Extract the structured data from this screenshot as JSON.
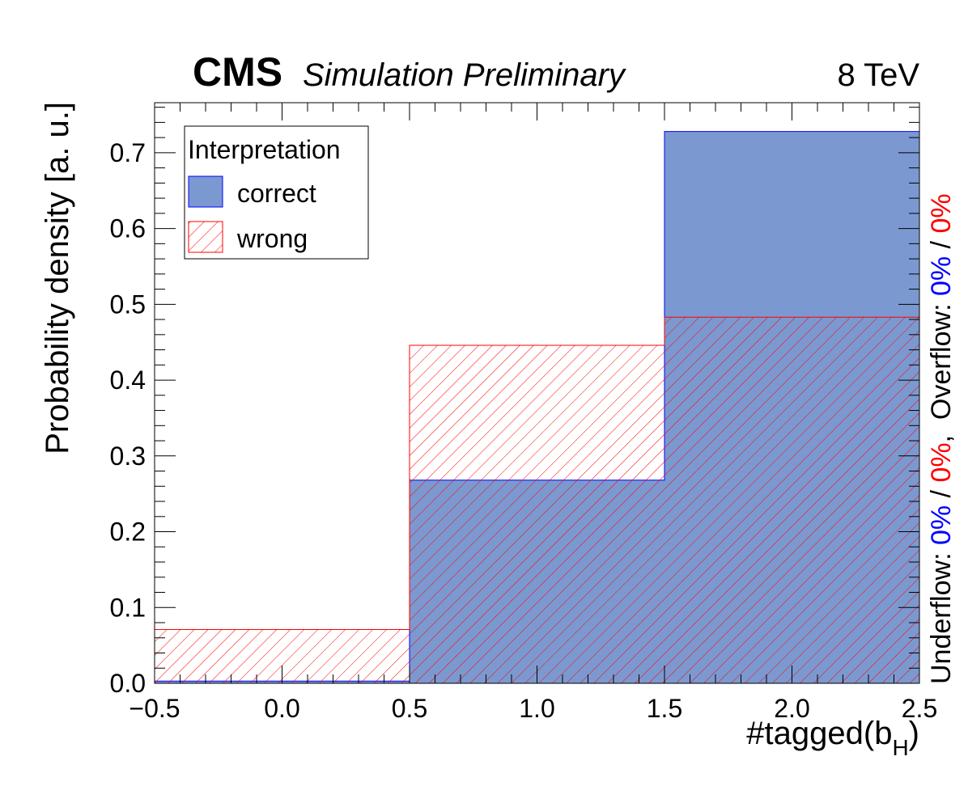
{
  "header": {
    "cms": "CMS",
    "subtitle": "Simulation Preliminary",
    "energy": "8 TeV"
  },
  "side_note": {
    "underflow_label": "Underflow: ",
    "underflow_correct": "0%",
    "sep1": " / ",
    "underflow_wrong": "0%",
    "overflow_label": ",  Overflow: ",
    "overflow_correct": "0%",
    "sep2": " / ",
    "overflow_wrong": "0%"
  },
  "colors": {
    "correct_fill": "#7b99d0",
    "correct_line": "#0000ff",
    "wrong_line": "#ff0000"
  },
  "chart_data": {
    "type": "bar",
    "bin_edges": [
      -0.5,
      0.5,
      1.5,
      2.5
    ],
    "series": [
      {
        "name": "correct",
        "values": [
          0.003,
          0.268,
          0.728
        ]
      },
      {
        "name": "wrong",
        "values": [
          0.071,
          0.446,
          0.483
        ]
      }
    ],
    "xlabel": "#tagged(b",
    "xlabel_sub": "H",
    "xlabel_close": ")",
    "ylabel": "Probability density [a. u.]",
    "xlim": [
      -0.5,
      2.5
    ],
    "ylim": [
      0.0,
      0.766
    ],
    "xticks": [
      -0.5,
      0.0,
      0.5,
      1.0,
      1.5,
      2.0,
      2.5
    ],
    "xtick_labels": [
      "−0.5",
      "0.0",
      "0.5",
      "1.0",
      "1.5",
      "2.0",
      "2.5"
    ],
    "yticks": [
      0.0,
      0.1,
      0.2,
      0.3,
      0.4,
      0.5,
      0.6,
      0.7
    ],
    "ytick_labels": [
      "0.0",
      "0.1",
      "0.2",
      "0.3",
      "0.4",
      "0.5",
      "0.6",
      "0.7"
    ],
    "legend": {
      "title": "Interpretation",
      "entries": [
        "correct",
        "wrong"
      ],
      "placement": "top-left"
    },
    "grid": false
  }
}
